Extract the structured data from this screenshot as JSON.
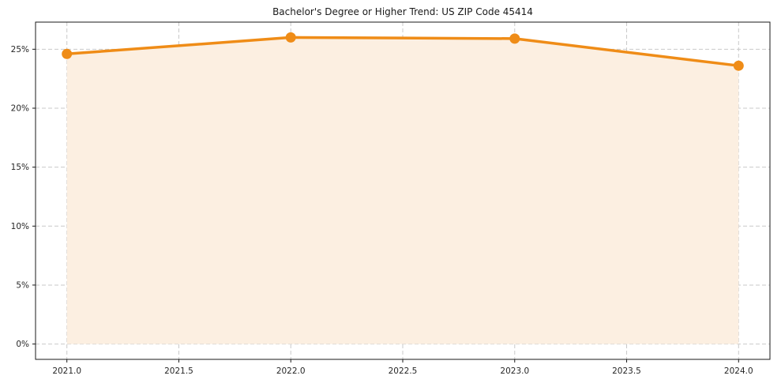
{
  "chart_data": {
    "type": "line",
    "title": "Bachelor's Degree or Higher Trend: US ZIP Code 45414",
    "x": [
      2021,
      2022,
      2023,
      2024
    ],
    "series": [
      {
        "name": "Bachelor's Degree or Higher",
        "values": [
          24.6,
          26.0,
          25.9,
          23.6
        ]
      }
    ],
    "xlim": [
      2020.86,
      2024.14
    ],
    "ylim": [
      -1.3,
      27.3
    ],
    "xticks": {
      "values": [
        2021.0,
        2021.5,
        2022.0,
        2022.5,
        2023.0,
        2023.5,
        2024.0
      ],
      "labels": [
        "2021.0",
        "2021.5",
        "2022.0",
        "2022.5",
        "2023.0",
        "2023.5",
        "2024.0"
      ]
    },
    "yticks": {
      "values": [
        0,
        5,
        10,
        15,
        20,
        25
      ],
      "labels": [
        "0%",
        "5%",
        "10%",
        "15%",
        "20%",
        "25%"
      ]
    },
    "grid": "dashed",
    "legend": "none",
    "colors": {
      "line": "#ef8c17",
      "marker": "#ef8c17",
      "fill": "#fcefe1",
      "grid": "#c9c9c9",
      "spine": "#1a1a1a",
      "text": "#262626",
      "background": "#ffffff"
    }
  }
}
